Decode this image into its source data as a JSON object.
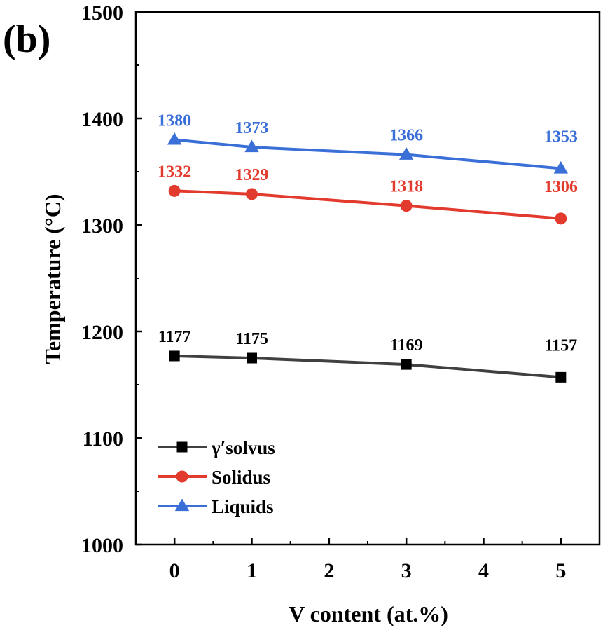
{
  "panel_label": "(b)",
  "colors": {
    "gamma_solvus": "#000000",
    "gamma_solvus_line": "#404040",
    "solidus": "#e23b2e",
    "liquids": "#3a6fd8"
  },
  "chart_data": {
    "type": "line",
    "xlabel": "V content (at.%)",
    "ylabel": "Temperature (°C)",
    "xlim": [
      -0.5,
      5.5
    ],
    "ylim": [
      1000,
      1500
    ],
    "xticks": [
      0,
      1,
      2,
      3,
      4,
      5
    ],
    "yticks": [
      1000,
      1100,
      1200,
      1300,
      1400,
      1500
    ],
    "x_tick_labels": [
      "0",
      "1",
      "2",
      "3",
      "4",
      "5"
    ],
    "y_tick_labels": [
      "1000",
      "1100",
      "1200",
      "1300",
      "1400",
      "1500"
    ],
    "grid": false,
    "legend_position": "bottom-left",
    "x": [
      0,
      1,
      3,
      5
    ],
    "series": [
      {
        "name": "γ′solvus",
        "key": "gamma_solvus",
        "marker": "square",
        "values": [
          1177,
          1175,
          1169,
          1157
        ],
        "labels": [
          "1177",
          "1175",
          "1169",
          "1157"
        ]
      },
      {
        "name": "Solidus",
        "key": "solidus",
        "marker": "circle",
        "values": [
          1332,
          1329,
          1318,
          1306
        ],
        "labels": [
          "1332",
          "1329",
          "1318",
          "1306"
        ]
      },
      {
        "name": "Liquids",
        "key": "liquids",
        "marker": "triangle",
        "values": [
          1380,
          1373,
          1366,
          1353
        ],
        "labels": [
          "1380",
          "1373",
          "1366",
          "1353"
        ]
      }
    ]
  }
}
